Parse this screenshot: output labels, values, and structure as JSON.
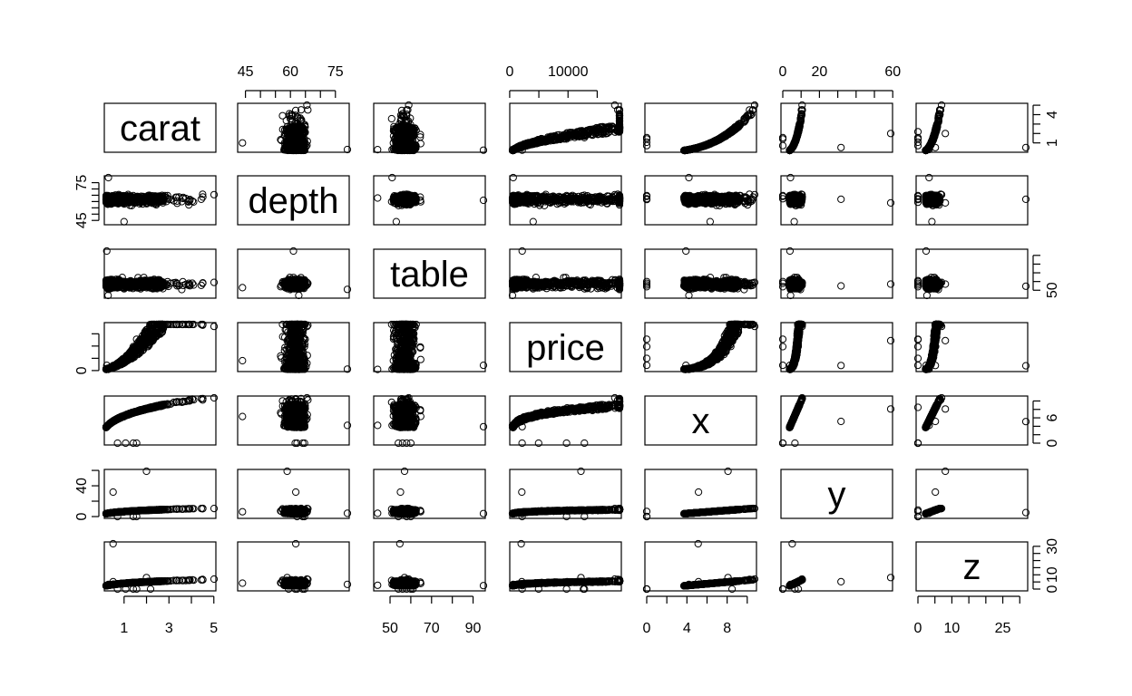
{
  "chart_data": {
    "type": "scatter",
    "subtype": "pairs-matrix",
    "variables": [
      "carat",
      "depth",
      "table",
      "price",
      "x",
      "y",
      "z"
    ],
    "ranges": {
      "carat": [
        0.2,
        5.01
      ],
      "depth": [
        43,
        79
      ],
      "table": [
        43,
        95
      ],
      "price": [
        326,
        18823
      ],
      "x": [
        0,
        10.74
      ],
      "y": [
        0,
        58.9
      ],
      "z": [
        0,
        31.8
      ]
    },
    "axes": {
      "top": [
        {
          "var": "depth",
          "ticks": [
            45,
            50,
            55,
            60,
            65,
            70,
            75
          ],
          "labels": [
            "45",
            "60",
            "75"
          ]
        },
        {
          "var": "price",
          "ticks": [
            0,
            5000,
            10000,
            15000
          ],
          "labels": [
            "0",
            "10000"
          ]
        },
        {
          "var": "y",
          "ticks": [
            0,
            10,
            20,
            30,
            40,
            50,
            60
          ],
          "labels": [
            "0",
            "20",
            "60"
          ]
        }
      ],
      "bottom": [
        {
          "var": "carat",
          "ticks": [
            1,
            2,
            3,
            4,
            5
          ],
          "labels": [
            "1",
            "3",
            "5"
          ]
        },
        {
          "var": "table",
          "ticks": [
            50,
            60,
            70,
            80,
            90
          ],
          "labels": [
            "50",
            "70",
            "90"
          ]
        },
        {
          "var": "x",
          "ticks": [
            0,
            2,
            4,
            6,
            8,
            10
          ],
          "labels": [
            "0",
            "4",
            "8"
          ]
        },
        {
          "var": "z",
          "ticks": [
            0,
            5,
            10,
            15,
            20,
            25,
            30
          ],
          "labels": [
            "0",
            "10",
            "25"
          ]
        }
      ],
      "left": [
        {
          "var": "depth",
          "ticks": [
            45,
            50,
            55,
            60,
            65,
            70,
            75
          ],
          "labels": [
            "45",
            "75"
          ]
        },
        {
          "var": "price",
          "ticks": [
            0,
            5000,
            10000,
            15000
          ],
          "labels": [
            "0"
          ]
        },
        {
          "var": "y",
          "ticks": [
            0,
            20,
            40,
            60
          ],
          "labels": [
            "0",
            "40"
          ]
        }
      ],
      "right": [
        {
          "var": "carat",
          "ticks": [
            1,
            2,
            3,
            4,
            5
          ],
          "labels": [
            "1",
            "4"
          ]
        },
        {
          "var": "table",
          "ticks": [
            50,
            60,
            70,
            80,
            90
          ],
          "labels": [
            "50"
          ]
        },
        {
          "var": "x",
          "ticks": [
            0,
            2,
            4,
            6,
            8,
            10
          ],
          "labels": [
            "0",
            "6"
          ]
        },
        {
          "var": "z",
          "ticks": [
            0,
            5,
            10,
            15,
            20,
            25,
            30
          ],
          "labels": [
            "0",
            "10",
            "30"
          ]
        }
      ]
    },
    "grid": false,
    "legend": "none",
    "marker": "open-circle",
    "colors": {
      "points": "#000000",
      "frame": "#000000",
      "background": "#ffffff"
    }
  }
}
